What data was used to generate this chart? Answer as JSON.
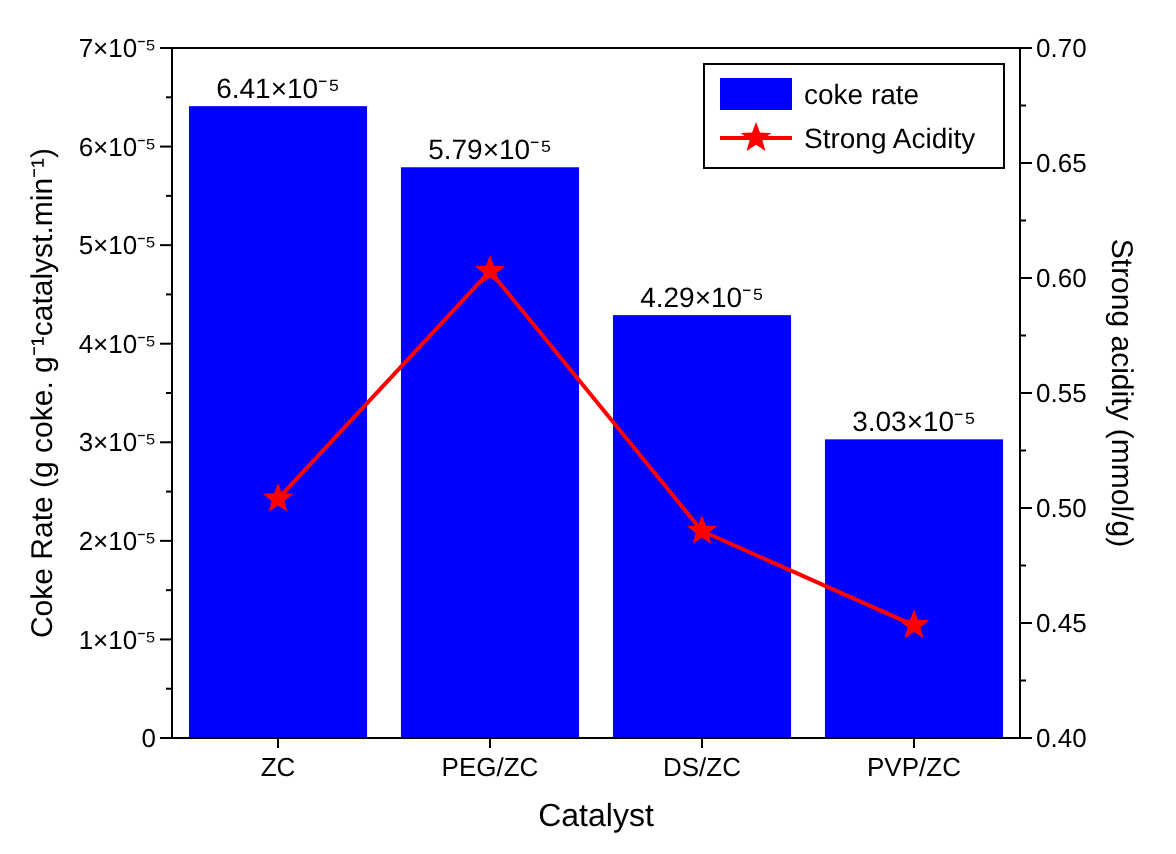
{
  "chart_data": {
    "type": "bar",
    "xlabel": "Catalyst",
    "ylabel": "Coke Rate (g coke. g⁻¹catalyst.min⁻¹)",
    "y2label": "Strong acidity (mmol/g)",
    "categories": [
      "ZC",
      "PEG/ZC",
      "DS/ZC",
      "PVP/ZC"
    ],
    "series": [
      {
        "name": "coke rate",
        "color": "#0000ff",
        "values": [
          6.41e-05,
          5.79e-05,
          4.29e-05,
          3.03e-05
        ],
        "value_labels": [
          "6.41×10⁻⁵",
          "5.79×10⁻⁵",
          "4.29×10⁻⁵",
          "3.03×10⁻⁵"
        ]
      },
      {
        "name": "Strong Acidity",
        "type": "line",
        "axis": "y2",
        "color": "#ff0000",
        "marker": "star",
        "values": [
          0.504,
          0.603,
          0.49,
          0.449
        ]
      }
    ],
    "ylim": [
      0,
      7e-05
    ],
    "yticks": [
      {
        "value": 0,
        "label": "0"
      },
      {
        "value": 5e-06,
        "label": null
      },
      {
        "value": 1e-05,
        "label": "1×10⁻⁵"
      },
      {
        "value": 1.5e-05,
        "label": null
      },
      {
        "value": 2e-05,
        "label": "2×10⁻⁵"
      },
      {
        "value": 2.5e-05,
        "label": null
      },
      {
        "value": 3e-05,
        "label": "3×10⁻⁵"
      },
      {
        "value": 3.5e-05,
        "label": null
      },
      {
        "value": 4e-05,
        "label": "4×10⁻⁵"
      },
      {
        "value": 4.5e-05,
        "label": null
      },
      {
        "value": 5e-05,
        "label": "5×10⁻⁵"
      },
      {
        "value": 5.5e-05,
        "label": null
      },
      {
        "value": 6e-05,
        "label": "6×10⁻⁵"
      },
      {
        "value": 6.5e-05,
        "label": null
      },
      {
        "value": 7e-05,
        "label": "7×10⁻⁵"
      }
    ],
    "y2lim": [
      0.4,
      0.7
    ],
    "y2ticks": [
      {
        "value": 0.4,
        "label": "0.40"
      },
      {
        "value": 0.425,
        "label": null
      },
      {
        "value": 0.45,
        "label": "0.45"
      },
      {
        "value": 0.475,
        "label": null
      },
      {
        "value": 0.5,
        "label": "0.50"
      },
      {
        "value": 0.525,
        "label": null
      },
      {
        "value": 0.55,
        "label": "0.55"
      },
      {
        "value": 0.575,
        "label": null
      },
      {
        "value": 0.6,
        "label": "0.60"
      },
      {
        "value": 0.625,
        "label": null
      },
      {
        "value": 0.65,
        "label": "0.65"
      },
      {
        "value": 0.675,
        "label": null
      },
      {
        "value": 0.7,
        "label": "0.70"
      }
    ],
    "legend": "top right",
    "grid": false
  }
}
